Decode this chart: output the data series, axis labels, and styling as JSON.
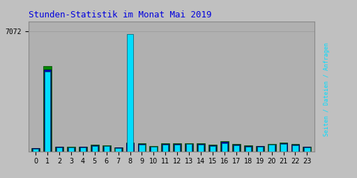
{
  "title": "Stunden-Statistik im Monat Mai 2019",
  "title_color": "#0000dd",
  "background_color": "#c0c0c0",
  "plot_bg_color": "#b0b0b0",
  "ymax": 7072,
  "ytick_label": "7072",
  "hours": [
    0,
    1,
    2,
    3,
    4,
    5,
    6,
    7,
    8,
    9,
    10,
    11,
    12,
    13,
    14,
    15,
    16,
    17,
    18,
    19,
    20,
    21,
    22,
    23
  ],
  "seiten": [
    200,
    5000,
    280,
    250,
    270,
    380,
    350,
    240,
    530,
    480,
    300,
    490,
    480,
    490,
    460,
    380,
    580,
    430,
    340,
    320,
    440,
    510,
    420,
    290
  ],
  "dateien": [
    175,
    4800,
    255,
    230,
    250,
    355,
    325,
    215,
    490,
    440,
    275,
    450,
    440,
    450,
    420,
    350,
    540,
    395,
    315,
    295,
    410,
    470,
    390,
    265
  ],
  "anfragen": [
    160,
    4700,
    230,
    210,
    225,
    320,
    300,
    195,
    6900,
    400,
    250,
    390,
    410,
    420,
    390,
    320,
    490,
    360,
    285,
    265,
    375,
    430,
    355,
    240
  ],
  "color_seiten": "#008800",
  "color_dateien": "#0000bb",
  "color_anfragen": "#00ddff",
  "bar_edge_seiten": "#004400",
  "bar_edge_dateien": "#000044",
  "bar_edge_anfragen": "#005566",
  "ylabel_seiten_color": "#008800",
  "ylabel_dateien_color": "#0000bb",
  "ylabel_anfragen_color": "#00ddff",
  "bar_width": 0.7,
  "grid_color": "#999999",
  "grid_linewidth": 0.5,
  "title_fontsize": 9,
  "tick_fontsize": 7
}
